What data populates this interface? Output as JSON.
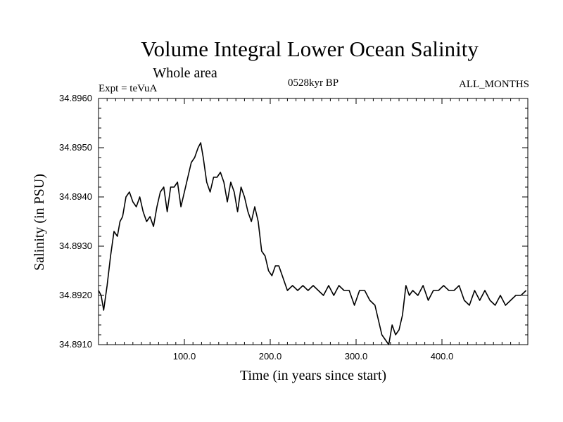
{
  "chart_data": {
    "type": "line",
    "title": "Volume Integral Lower Ocean Salinity",
    "subtitle": "Whole area",
    "experiment_label": "Expt = teVuA",
    "period_label": "0528kyr BP",
    "months_label": "ALL_MONTHS",
    "xlabel": "Time (in years since start)",
    "ylabel": "Salinity (in PSU)",
    "xlim": [
      0,
      500
    ],
    "ylim": [
      34.891,
      34.896
    ],
    "x_ticks": [
      100,
      200,
      300,
      400
    ],
    "x_tick_labels": [
      "100.0",
      "200.0",
      "300.0",
      "400.0"
    ],
    "y_ticks": [
      34.891,
      34.892,
      34.893,
      34.894,
      34.895,
      34.896
    ],
    "y_tick_labels": [
      "34.8910",
      "34.8920",
      "34.8930",
      "34.8940",
      "34.8950",
      "34.8960"
    ],
    "grid": false,
    "series": [
      {
        "name": "Salinity",
        "x": [
          0,
          3,
          6,
          10,
          14,
          18,
          22,
          25,
          28,
          32,
          36,
          40,
          44,
          48,
          52,
          56,
          60,
          64,
          68,
          72,
          76,
          80,
          84,
          88,
          92,
          96,
          100,
          104,
          108,
          112,
          116,
          119,
          122,
          126,
          130,
          134,
          138,
          142,
          146,
          150,
          154,
          158,
          162,
          166,
          170,
          174,
          178,
          182,
          186,
          190,
          194,
          198,
          202,
          206,
          210,
          214,
          220,
          226,
          232,
          238,
          244,
          250,
          256,
          262,
          268,
          274,
          280,
          286,
          292,
          298,
          304,
          310,
          316,
          322,
          326,
          330,
          334,
          338,
          342,
          346,
          350,
          354,
          358,
          362,
          366,
          372,
          378,
          384,
          390,
          396,
          402,
          408,
          414,
          420,
          426,
          432,
          438,
          444,
          450,
          456,
          462,
          468,
          474,
          480,
          486,
          492,
          498
        ],
        "values": [
          34.8921,
          34.892,
          34.8917,
          34.8922,
          34.8928,
          34.8933,
          34.8932,
          34.8935,
          34.8936,
          34.894,
          34.8941,
          34.8939,
          34.8938,
          34.894,
          34.8937,
          34.8935,
          34.8936,
          34.8934,
          34.8938,
          34.8941,
          34.8942,
          34.8937,
          34.8942,
          34.8942,
          34.8943,
          34.8938,
          34.8941,
          34.8944,
          34.8947,
          34.8948,
          34.895,
          34.8951,
          34.8948,
          34.8943,
          34.8941,
          34.8944,
          34.8944,
          34.8945,
          34.8943,
          34.8939,
          34.8943,
          34.8941,
          34.8937,
          34.8942,
          34.894,
          34.8937,
          34.8935,
          34.8938,
          34.8935,
          34.8929,
          34.8928,
          34.8925,
          34.8924,
          34.8926,
          34.8926,
          34.8924,
          34.8921,
          34.8922,
          34.8921,
          34.8922,
          34.8921,
          34.8922,
          34.8921,
          34.892,
          34.8922,
          34.892,
          34.8922,
          34.8921,
          34.8921,
          34.8918,
          34.8921,
          34.8921,
          34.8919,
          34.8918,
          34.8915,
          34.8912,
          34.8911,
          34.891,
          34.8914,
          34.8912,
          34.8913,
          34.8916,
          34.8922,
          34.892,
          34.8921,
          34.892,
          34.8922,
          34.8919,
          34.8921,
          34.8921,
          34.8922,
          34.8921,
          34.8921,
          34.8922,
          34.8919,
          34.8918,
          34.8921,
          34.8919,
          34.8921,
          34.8919,
          34.8918,
          34.892,
          34.8918,
          34.8919,
          34.892,
          34.892,
          34.8921
        ]
      }
    ]
  }
}
